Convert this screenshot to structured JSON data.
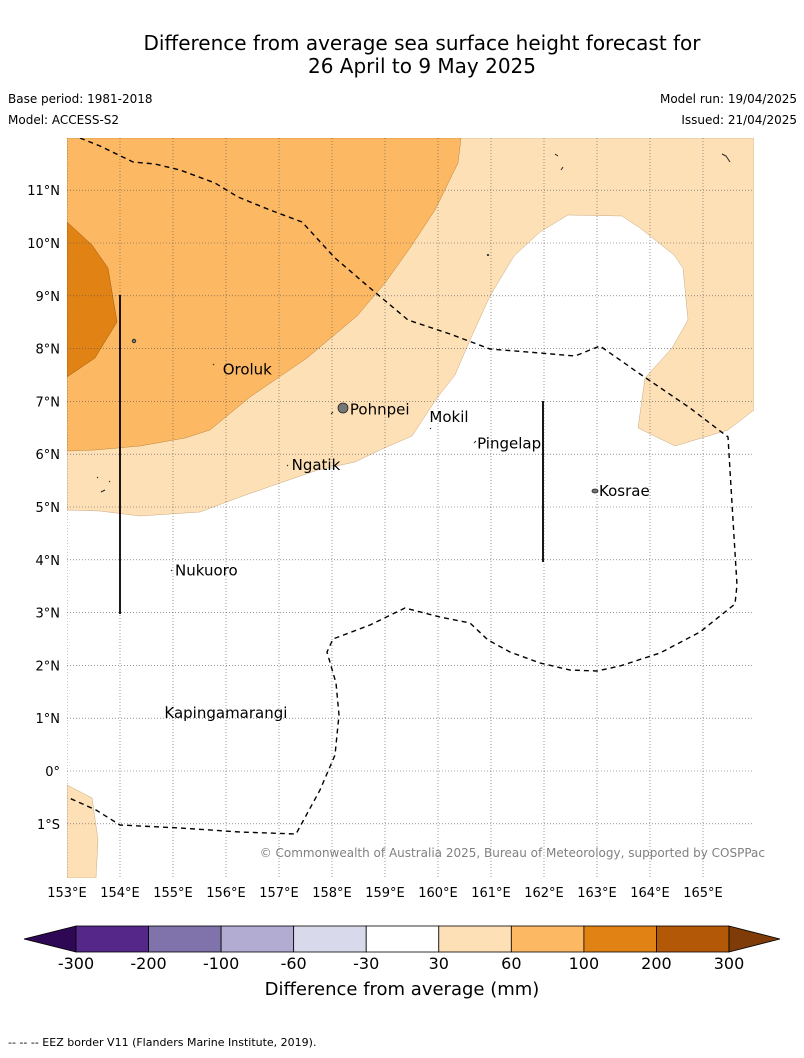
{
  "title": {
    "line1": "Difference from average sea surface height forecast for",
    "line2": "26 April to 9 May 2025"
  },
  "meta": {
    "base_period": "Base period: 1981-2018",
    "model": "Model: ACCESS-S2",
    "model_run": "Model run: 19/04/2025",
    "issued": "Issued: 21/04/2025"
  },
  "map": {
    "lat_labels": [
      "11°N",
      "10°N",
      "9°N",
      "8°N",
      "7°N",
      "6°N",
      "5°N",
      "4°N",
      "3°N",
      "2°N",
      "1°N",
      "0°",
      "1°S"
    ],
    "lon_labels": [
      "153°E",
      "154°E",
      "155°E",
      "156°E",
      "157°E",
      "158°E",
      "159°E",
      "160°E",
      "161°E",
      "162°E",
      "163°E",
      "164°E",
      "165°E"
    ],
    "places": [
      {
        "name": "Oroluk",
        "lon": 155.9,
        "lat": 7.6
      },
      {
        "name": "Pohnpei",
        "lon": 158.3,
        "lat": 6.85
      },
      {
        "name": "Mokil",
        "lon": 159.8,
        "lat": 6.7
      },
      {
        "name": "Pingelap",
        "lon": 160.7,
        "lat": 6.2
      },
      {
        "name": "Ngatik",
        "lon": 157.2,
        "lat": 5.8
      },
      {
        "name": "Kosrae",
        "lon": 163.0,
        "lat": 5.3
      },
      {
        "name": "Nukuoro",
        "lon": 155.0,
        "lat": 3.8
      },
      {
        "name": "Kapingamarangi",
        "lon": 154.8,
        "lat": 1.1
      }
    ],
    "copyright": "© Commonwealth of Australia 2025, Bureau of Meteorology, supported by COSPPac"
  },
  "legend": {
    "title": "Difference from average (mm)",
    "ticks": [
      "-300",
      "-200",
      "-100",
      "-60",
      "-30",
      "30",
      "60",
      "100",
      "200",
      "300"
    ],
    "colors": [
      "#2e0854",
      "#542788",
      "#8073ac",
      "#b2abd2",
      "#d8daeb",
      "#ffffff",
      "#fee0b6",
      "#fdb863",
      "#e08214",
      "#b35806",
      "#7f3b08"
    ]
  },
  "footer": "--  --  -- EEZ border V11 (Flanders Marine Institute, 2019)."
}
